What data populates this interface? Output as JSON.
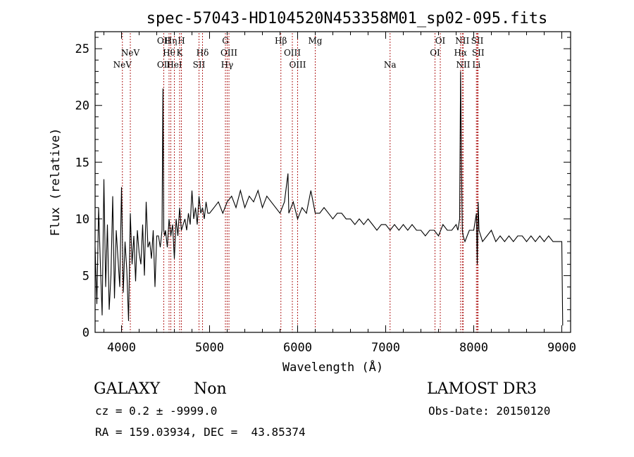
{
  "chart_data": {
    "type": "line",
    "title": "spec-57043-HD104520N453358M01_sp02-095.fits",
    "xlabel": "Wavelength (Å)",
    "ylabel": "Flux (relative)",
    "xlim": [
      3700,
      9100
    ],
    "ylim": [
      0,
      26.5
    ],
    "xticks": [
      4000,
      5000,
      6000,
      7000,
      8000,
      9000
    ],
    "yticks": [
      0,
      5,
      10,
      15,
      20,
      25
    ],
    "series": [
      {
        "name": "flux",
        "x": [
          3700,
          3720,
          3740,
          3760,
          3780,
          3800,
          3820,
          3840,
          3860,
          3880,
          3900,
          3920,
          3940,
          3960,
          3980,
          4000,
          4020,
          4040,
          4060,
          4080,
          4100,
          4120,
          4140,
          4160,
          4180,
          4200,
          4220,
          4240,
          4260,
          4280,
          4300,
          4320,
          4340,
          4360,
          4380,
          4400,
          4420,
          4440,
          4460,
          4470,
          4480,
          4490,
          4500,
          4520,
          4540,
          4560,
          4580,
          4600,
          4620,
          4640,
          4660,
          4680,
          4700,
          4720,
          4740,
          4760,
          4780,
          4800,
          4820,
          4840,
          4860,
          4880,
          4900,
          4920,
          4940,
          4960,
          4980,
          5000,
          5050,
          5100,
          5150,
          5200,
          5250,
          5300,
          5350,
          5400,
          5450,
          5500,
          5550,
          5600,
          5650,
          5700,
          5750,
          5800,
          5850,
          5890,
          5900,
          5950,
          6000,
          6050,
          6100,
          6150,
          6200,
          6250,
          6300,
          6350,
          6400,
          6450,
          6500,
          6550,
          6600,
          6650,
          6700,
          6750,
          6800,
          6850,
          6900,
          6950,
          7000,
          7050,
          7100,
          7150,
          7200,
          7250,
          7300,
          7350,
          7400,
          7450,
          7500,
          7550,
          7600,
          7650,
          7700,
          7750,
          7800,
          7820,
          7840,
          7850,
          7860,
          7870,
          7880,
          7900,
          7950,
          8000,
          8030,
          8040,
          8050,
          8060,
          8100,
          8150,
          8200,
          8250,
          8300,
          8350,
          8400,
          8450,
          8500,
          8550,
          8600,
          8650,
          8700,
          8750,
          8800,
          8850,
          8900,
          8950,
          9000,
          9010
        ],
        "values": [
          7.5,
          2.5,
          11.0,
          6.0,
          1.5,
          13.5,
          4.0,
          9.5,
          2.0,
          5.0,
          12.0,
          3.0,
          9.0,
          6.5,
          4.0,
          12.8,
          3.5,
          8.0,
          5.5,
          1.0,
          10.5,
          6.0,
          8.5,
          4.5,
          9.0,
          7.0,
          6.0,
          9.5,
          5.0,
          11.5,
          7.5,
          8.0,
          6.5,
          9.0,
          4.0,
          8.5,
          8.5,
          7.5,
          9.0,
          21.5,
          9.0,
          8.5,
          9.0,
          7.5,
          10.0,
          8.5,
          9.5,
          6.5,
          10.0,
          8.5,
          11.0,
          9.0,
          9.5,
          10.0,
          9.0,
          10.5,
          9.5,
          12.5,
          10.0,
          11.0,
          9.5,
          12.0,
          10.5,
          11.0,
          10.0,
          11.5,
          10.5,
          10.5,
          11.0,
          11.5,
          10.5,
          11.5,
          12.0,
          11.0,
          12.5,
          11.0,
          12.0,
          11.5,
          12.5,
          11.0,
          12.0,
          11.5,
          11.0,
          10.5,
          11.5,
          14.0,
          10.5,
          11.5,
          10.0,
          11.0,
          10.5,
          12.5,
          10.5,
          10.5,
          11.0,
          10.5,
          10.0,
          10.5,
          10.5,
          10.0,
          10.0,
          9.5,
          10.0,
          9.5,
          10.0,
          9.5,
          9.0,
          9.5,
          9.5,
          9.0,
          9.5,
          9.0,
          9.5,
          9.0,
          9.5,
          9.0,
          9.0,
          8.5,
          9.0,
          9.0,
          8.5,
          9.5,
          9.0,
          9.0,
          9.5,
          9.0,
          10.0,
          23.0,
          15.0,
          9.0,
          8.5,
          8.0,
          9.0,
          9.0,
          10.5,
          6.0,
          11.5,
          9.0,
          8.0,
          8.5,
          9.0,
          8.0,
          8.5,
          8.0,
          8.5,
          8.0,
          8.5,
          8.5,
          8.0,
          8.5,
          8.0,
          8.5,
          8.0,
          8.5,
          8.0,
          8.0,
          8.0,
          0.6
        ]
      }
    ],
    "line_markers": [
      {
        "label": "NeV",
        "wavelength": 4010,
        "row": 2,
        "sublabel_html": "NeV"
      },
      {
        "label": "NeV",
        "wavelength": 4100,
        "row": 1,
        "sublabel_html": "NeV"
      },
      {
        "label": "OII",
        "wavelength": 4480,
        "row": 0,
        "sublabel_html": "OII"
      },
      {
        "label": "OII",
        "wavelength": 4480,
        "row": 2,
        "sublabel_html": "OII"
      },
      {
        "label": "Hη",
        "wavelength": 4560,
        "row": 0,
        "sublabel_html": "Hη"
      },
      {
        "label": "Hθ",
        "wavelength": 4540,
        "row": 1,
        "sublabel_html": "Hθ"
      },
      {
        "label": "HeI",
        "wavelength": 4600,
        "row": 2,
        "sublabel_html": "HeI"
      },
      {
        "label": "H",
        "wavelength": 4680,
        "row": 0,
        "sublabel_html": "H"
      },
      {
        "label": "K",
        "wavelength": 4660,
        "row": 1,
        "sublabel_html": "K"
      },
      {
        "label": "Hδ",
        "wavelength": 4920,
        "row": 1,
        "sublabel_html": "Hδ"
      },
      {
        "label": "SII",
        "wavelength": 4880,
        "row": 2,
        "sublabel_html": "SII"
      },
      {
        "label": "G",
        "wavelength": 5180,
        "row": 0,
        "sublabel_html": "G"
      },
      {
        "label": "OIII",
        "wavelength": 5220,
        "row": 1,
        "sublabel_html": "OIII"
      },
      {
        "label": "Hγ",
        "wavelength": 5200,
        "row": 2,
        "sublabel_html": "Hγ"
      },
      {
        "label": "Hβ",
        "wavelength": 5810,
        "row": 0,
        "sublabel_html": "Hβ"
      },
      {
        "label": "OIII",
        "wavelength": 5940,
        "row": 1,
        "sublabel_html": "OIII"
      },
      {
        "label": "OIII",
        "wavelength": 6000,
        "row": 2,
        "sublabel_html": "OIII"
      },
      {
        "label": "Mg",
        "wavelength": 6200,
        "row": 0,
        "sublabel_html": "Mg"
      },
      {
        "label": "Na",
        "wavelength": 7050,
        "row": 2,
        "sublabel_html": "Na"
      },
      {
        "label": "OI",
        "wavelength": 7620,
        "row": 0,
        "sublabel_html": "OI"
      },
      {
        "label": "OI",
        "wavelength": 7560,
        "row": 1,
        "sublabel_html": "OI"
      },
      {
        "label": "NII",
        "wavelength": 7870,
        "row": 0,
        "sublabel_html": "NII"
      },
      {
        "label": "Hα",
        "wavelength": 7850,
        "row": 1,
        "sublabel_html": "Hα"
      },
      {
        "label": "NII",
        "wavelength": 7880,
        "row": 2,
        "sublabel_html": "NII"
      },
      {
        "label": "SII",
        "wavelength": 8040,
        "row": 0,
        "sublabel_html": "SII"
      },
      {
        "label": "SII",
        "wavelength": 8050,
        "row": 1,
        "sublabel_html": "SII"
      },
      {
        "label": "Li",
        "wavelength": 8030,
        "row": 2,
        "sublabel_html": "Li"
      }
    ]
  },
  "info": {
    "class_label": "GALAXY",
    "subclass_label": "Non",
    "survey": "LAMOST DR3",
    "cz": "cz = 0.2 ± -9999.0",
    "obs_date": "Obs-Date: 20150120",
    "coords": "RA = 159.03934, DEC =  43.85374"
  },
  "colors": {
    "axis": "#000000",
    "marker_line": "#b22222",
    "spectrum": "#000000"
  }
}
